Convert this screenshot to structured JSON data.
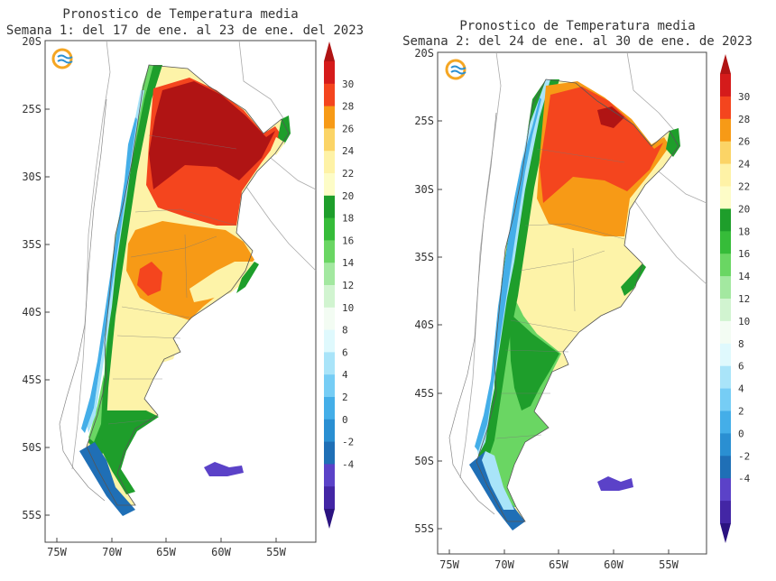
{
  "panels": [
    {
      "title_line1": "Pronostico de Temperatura media",
      "title_line2": "Semana 1: del 17 de ene. al 23 de ene. del 2023",
      "lat_labels": [
        "20S",
        "25S",
        "30S",
        "35S",
        "40S",
        "45S",
        "50S",
        "55S"
      ],
      "lon_labels": [
        "75W",
        "70W",
        "65W",
        "60W",
        "55W"
      ],
      "colorbar_labels": [
        "30",
        "28",
        "26",
        "24",
        "22",
        "20",
        "18",
        "16",
        "14",
        "12",
        "10",
        "8",
        "6",
        "4",
        "2",
        "0",
        "-2",
        "-4"
      ]
    },
    {
      "title_line1": "Pronostico de Temperatura media",
      "title_line2": "Semana 2: del 24 de ene. al 30 de ene. de 2023",
      "lat_labels": [
        "20S",
        "25S",
        "30S",
        "35S",
        "40S",
        "45S",
        "50S",
        "55S"
      ],
      "lon_labels": [
        "75W",
        "70W",
        "65W",
        "60W",
        "55W"
      ],
      "colorbar_labels": [
        "30",
        "28",
        "26",
        "24",
        "22",
        "20",
        "18",
        "16",
        "14",
        "12",
        "10",
        "8",
        "6",
        "4",
        "2",
        "0",
        "-2",
        "-4"
      ]
    }
  ],
  "colorbar_colors": [
    "#b01414",
    "#d51b1b",
    "#f4451e",
    "#f79a16",
    "#fbd466",
    "#fef2a6",
    "#fdfcc7",
    "#1e9e2b",
    "#36bc39",
    "#6ad663",
    "#a3e8a0",
    "#d1f4d0",
    "#f3fcf3",
    "#dff9fd",
    "#a9e4f9",
    "#76cdf5",
    "#44aee8",
    "#2a8fd2",
    "#1f6fb6",
    "#5b42c8",
    "#4326a5",
    "#2b1380"
  ],
  "legend": {
    "logo": "smn-logo-icon"
  }
}
